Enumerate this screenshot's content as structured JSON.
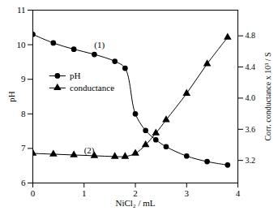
{
  "chart_data": {
    "type": "line",
    "x_label": "NiCl₂ / mL",
    "y_label": "pH",
    "y2_label": "Corr. conductance x 10³ / S",
    "x": [
      0,
      0.4,
      0.8,
      1.2,
      1.6,
      1.8,
      2.0,
      2.2,
      2.4,
      2.6,
      3.0,
      3.4,
      3.8
    ],
    "series": [
      {
        "name": "pH",
        "color": "#000000",
        "marker": "circle",
        "axis": "y",
        "values": [
          10.3,
          10.05,
          9.87,
          9.72,
          9.52,
          9.32,
          8.0,
          7.52,
          7.25,
          7.05,
          6.78,
          6.62,
          6.52
        ]
      },
      {
        "name": "conductance",
        "color": "#000000",
        "marker": "triangle",
        "axis": "y2",
        "values": [
          3.29,
          3.28,
          3.27,
          3.26,
          3.25,
          3.25,
          3.29,
          3.4,
          3.55,
          3.72,
          4.06,
          4.44,
          4.78
        ]
      }
    ],
    "xlim": [
      0,
      4
    ],
    "xticks": [
      0,
      1,
      2,
      3,
      4
    ],
    "ylim": [
      6,
      11
    ],
    "yticks": [
      6,
      7,
      8,
      9,
      10,
      11
    ],
    "y2lim": [
      2.91,
      5.13
    ],
    "y2ticks": [
      3.2,
      3.6,
      {
        "value": 4.0,
        "label": "4.0"
      },
      4.4,
      4.8
    ],
    "legend": "center left",
    "grid": false,
    "annotations": [
      {
        "text": "(1)",
        "x": 1.3,
        "y": 10.0
      },
      {
        "text": "(2)",
        "x": 1.1,
        "y": 6.95
      }
    ]
  }
}
